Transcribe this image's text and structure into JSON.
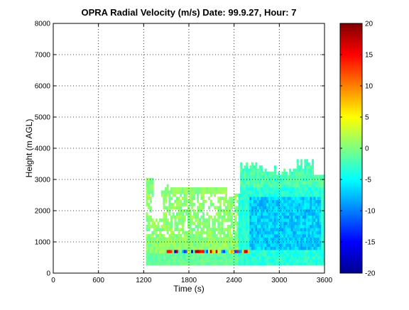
{
  "chart_data": {
    "type": "heatmap",
    "title": "OPRA Radial Velocity (m/s)  Date: 99.9.27, Hour: 7",
    "xlabel": "Time (s)",
    "ylabel": "Height (m AGL)",
    "xlim": [
      0,
      3600
    ],
    "ylim": [
      0,
      8000
    ],
    "x_ticks": [
      "0",
      "600",
      "1200",
      "1800",
      "2400",
      "3000",
      "3600"
    ],
    "x_tick_values": [
      0,
      600,
      1200,
      1800,
      2400,
      3000,
      3600
    ],
    "y_ticks": [
      "0",
      "1000",
      "2000",
      "3000",
      "4000",
      "5000",
      "6000",
      "7000",
      "8000"
    ],
    "y_tick_values": [
      0,
      1000,
      2000,
      3000,
      4000,
      5000,
      6000,
      7000,
      8000
    ],
    "grid": true,
    "colormap": "jet",
    "colorbar": {
      "range": [
        -20,
        20
      ],
      "ticks": [
        "20",
        "15",
        "10",
        "5",
        "0",
        "-5",
        "-10",
        "-15",
        "-20"
      ],
      "tick_values": [
        20,
        15,
        10,
        5,
        0,
        -5,
        -10,
        -15,
        -20
      ]
    },
    "data_description_regions": [
      {
        "time": [
          1230,
          2450
        ],
        "height": [
          250,
          3000
        ],
        "velocity_approx": 0
      },
      {
        "time": [
          2450,
          3600
        ],
        "height": [
          250,
          3500
        ],
        "velocity_approx": -4
      },
      {
        "time": [
          2600,
          3550
        ],
        "height": [
          700,
          2400
        ],
        "velocity_approx": -7
      },
      {
        "time": [
          1480,
          2600
        ],
        "height": [
          600,
          750
        ],
        "velocity_approx": "mixed -20 to 20"
      }
    ]
  }
}
